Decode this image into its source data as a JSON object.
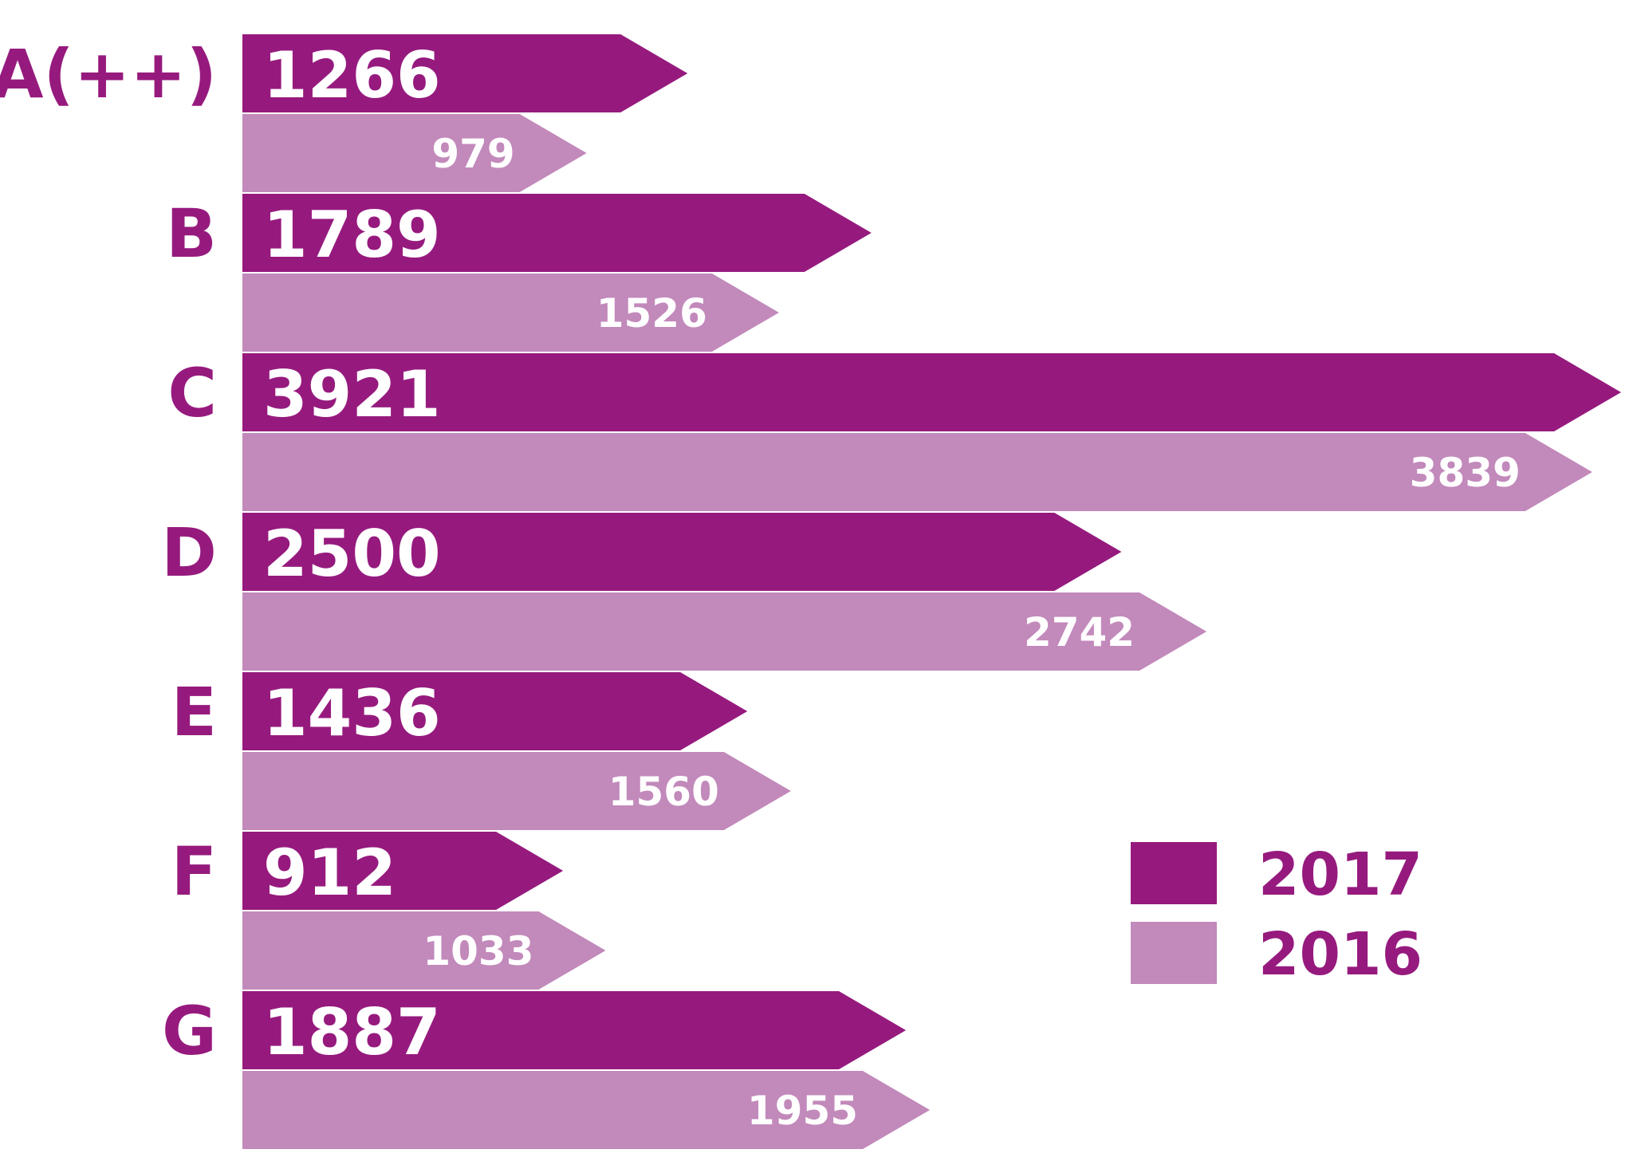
{
  "chart_data": {
    "type": "bar",
    "orientation": "horizontal",
    "title": "",
    "xlabel": "",
    "ylabel": "",
    "categories": [
      "A(++)",
      "B",
      "C",
      "D",
      "E",
      "F",
      "G"
    ],
    "series": [
      {
        "name": "2017",
        "color": "#961a7e",
        "values": [
          1266,
          1789,
          3921,
          2500,
          1436,
          912,
          1887
        ]
      },
      {
        "name": "2016",
        "color": "#c289bb",
        "values": [
          979,
          1526,
          3839,
          2742,
          1560,
          1033,
          1955
        ]
      }
    ],
    "xlim": [
      0,
      4000
    ],
    "grid": false,
    "legend": {
      "placement": "right",
      "items": [
        "2017",
        "2016"
      ]
    },
    "label_color": "#961a7e"
  }
}
